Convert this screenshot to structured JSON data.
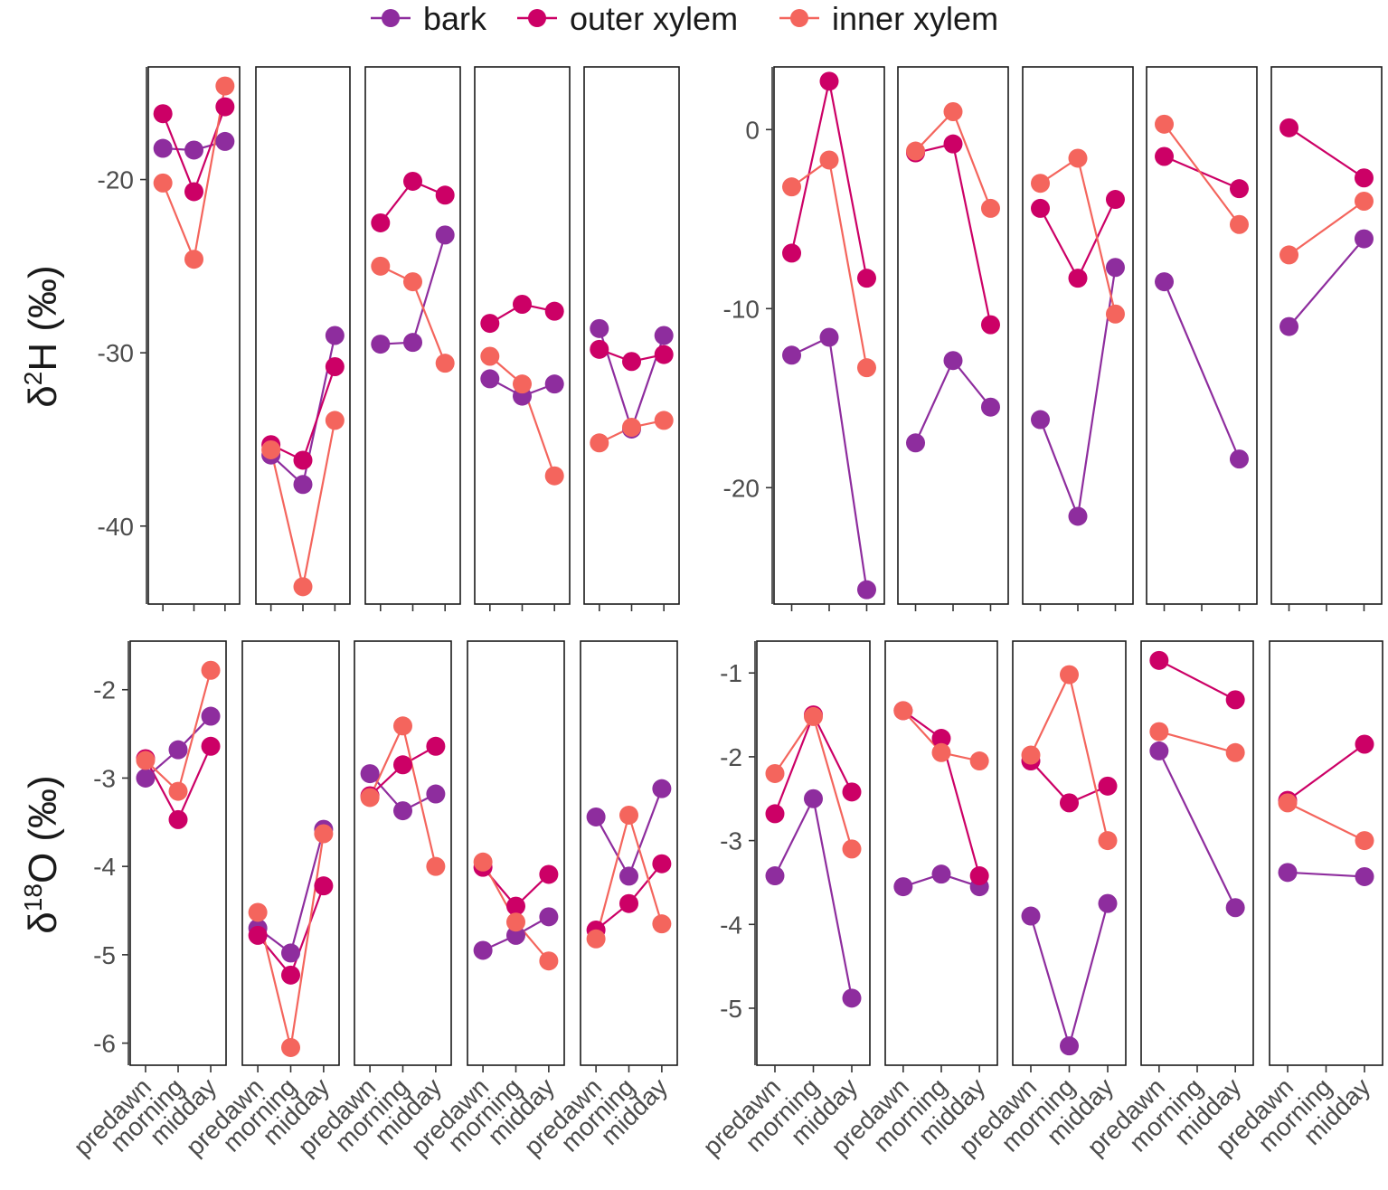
{
  "colors": {
    "bark": "#8e2d9e",
    "outer xylem": "#cc0066",
    "inner xylem": "#f4655d"
  },
  "chart_data": {
    "type": "line",
    "legend": {
      "position": "top",
      "entries": [
        {
          "name": "bark",
          "color_key": "bark"
        },
        {
          "name": "outer xylem",
          "color_key": "outer xylem"
        },
        {
          "name": "inner xylem",
          "color_key": "inner xylem"
        }
      ]
    },
    "categories": [
      "predawn",
      "morning",
      "midday"
    ],
    "rows": [
      {
        "ylabel_symbol": "δ",
        "ylabel_sup": "2",
        "ylabel_element": "H",
        "ylabel_unit": " (‰)",
        "groups": [
          {
            "ylim": [
              -44.5,
              -13.5
            ],
            "yticks": [
              {
                "v": -20,
                "label": "-20"
              },
              {
                "v": -30,
                "label": "-30"
              },
              {
                "v": -40,
                "label": "-40"
              }
            ],
            "panels": [
              {
                "bark": [
                  -18.2,
                  -18.3,
                  -17.8
                ],
                "outer xylem": [
                  -16.2,
                  -20.7,
                  -15.8
                ],
                "inner xylem": [
                  -20.2,
                  -24.6,
                  -14.6
                ]
              },
              {
                "bark": [
                  -35.9,
                  -37.6,
                  -29.0
                ],
                "outer xylem": [
                  -35.3,
                  -36.2,
                  -30.8
                ],
                "inner xylem": [
                  -35.6,
                  -43.5,
                  -33.9
                ]
              },
              {
                "bark": [
                  -29.5,
                  -29.4,
                  -23.2
                ],
                "outer xylem": [
                  -22.5,
                  -20.1,
                  -20.9
                ],
                "inner xylem": [
                  -25.0,
                  -25.9,
                  -30.6
                ]
              },
              {
                "bark": [
                  -31.5,
                  -32.5,
                  -31.8
                ],
                "outer xylem": [
                  -28.3,
                  -27.2,
                  -27.6
                ],
                "inner xylem": [
                  -30.2,
                  -31.8,
                  -37.1
                ]
              },
              {
                "bark": [
                  -28.6,
                  -34.4,
                  -29.0
                ],
                "outer xylem": [
                  -29.8,
                  -30.5,
                  -30.1
                ],
                "inner xylem": [
                  -35.2,
                  -34.3,
                  -33.9
                ]
              }
            ]
          },
          {
            "ylim": [
              -26.5,
              3.5
            ],
            "yticks": [
              {
                "v": 0,
                "label": "0"
              },
              {
                "v": -10,
                "label": "-10"
              },
              {
                "v": -20,
                "label": "-20"
              }
            ],
            "panels": [
              {
                "bark": [
                  -12.6,
                  -11.6,
                  -25.7
                ],
                "outer xylem": [
                  -6.9,
                  2.7,
                  -8.3
                ],
                "inner xylem": [
                  -3.2,
                  -1.7,
                  -13.3
                ]
              },
              {
                "bark": [
                  -17.5,
                  -12.9,
                  -15.5
                ],
                "outer xylem": [
                  -1.3,
                  -0.8,
                  -10.9
                ],
                "inner xylem": [
                  -1.2,
                  1.0,
                  -4.4
                ]
              },
              {
                "bark": [
                  -16.2,
                  -21.6,
                  -7.7
                ],
                "outer xylem": [
                  -4.4,
                  -8.3,
                  -3.9
                ],
                "inner xylem": [
                  -3.0,
                  -1.6,
                  -10.3
                ]
              },
              {
                "bark": [
                  -8.5,
                  null,
                  -18.4
                ],
                "outer xylem": [
                  -1.5,
                  null,
                  -3.3
                ],
                "inner xylem": [
                  0.3,
                  null,
                  -5.3
                ]
              },
              {
                "bark": [
                  -11.0,
                  null,
                  -6.1
                ],
                "outer xylem": [
                  0.1,
                  null,
                  -2.7
                ],
                "inner xylem": [
                  -7.0,
                  null,
                  -4.0
                ]
              }
            ]
          }
        ]
      },
      {
        "ylabel_symbol": "δ",
        "ylabel_sup": "18",
        "ylabel_element": "O",
        "ylabel_unit": " (‰)",
        "groups": [
          {
            "ylim": [
              -6.25,
              -1.45
            ],
            "yticks": [
              {
                "v": -2,
                "label": "-2"
              },
              {
                "v": -3,
                "label": "-3"
              },
              {
                "v": -4,
                "label": "-4"
              },
              {
                "v": -5,
                "label": "-5"
              },
              {
                "v": -6,
                "label": "-6"
              }
            ],
            "panels": [
              {
                "bark": [
                  -3.0,
                  -2.68,
                  -2.3
                ],
                "outer xylem": [
                  -2.78,
                  -3.47,
                  -2.64
                ],
                "inner xylem": [
                  -2.8,
                  -3.15,
                  -1.78
                ]
              },
              {
                "bark": [
                  -4.7,
                  -4.98,
                  -3.58
                ],
                "outer xylem": [
                  -4.78,
                  -5.23,
                  -4.22
                ],
                "inner xylem": [
                  -4.52,
                  -6.05,
                  -3.63
                ]
              },
              {
                "bark": [
                  -2.95,
                  -3.37,
                  -3.18
                ],
                "outer xylem": [
                  -3.2,
                  -2.85,
                  -2.64
                ],
                "inner xylem": [
                  -3.22,
                  -2.41,
                  -4.0
                ]
              },
              {
                "bark": [
                  -4.95,
                  -4.78,
                  -4.57
                ],
                "outer xylem": [
                  -4.01,
                  -4.45,
                  -4.09
                ],
                "inner xylem": [
                  -3.95,
                  -4.63,
                  -5.07
                ]
              },
              {
                "bark": [
                  -3.44,
                  -4.11,
                  -3.12
                ],
                "outer xylem": [
                  -4.72,
                  -4.42,
                  -3.97
                ],
                "inner xylem": [
                  -4.82,
                  -3.42,
                  -4.65
                ]
              }
            ]
          },
          {
            "ylim": [
              -5.68,
              -0.62
            ],
            "yticks": [
              {
                "v": -1,
                "label": "-1"
              },
              {
                "v": -2,
                "label": "-2"
              },
              {
                "v": -3,
                "label": "-3"
              },
              {
                "v": -4,
                "label": "-4"
              },
              {
                "v": -5,
                "label": "-5"
              }
            ],
            "panels": [
              {
                "bark": [
                  -3.42,
                  -2.5,
                  -4.88
                ],
                "outer xylem": [
                  -2.68,
                  -1.5,
                  -2.42
                ],
                "inner xylem": [
                  -2.2,
                  -1.52,
                  -3.1
                ]
              },
              {
                "bark": [
                  -3.55,
                  -3.4,
                  -3.55
                ],
                "outer xylem": [
                  -1.45,
                  -1.78,
                  -3.42
                ],
                "inner xylem": [
                  -1.45,
                  -1.95,
                  -2.05
                ]
              },
              {
                "bark": [
                  -3.9,
                  -5.45,
                  -3.75
                ],
                "outer xylem": [
                  -2.05,
                  -2.55,
                  -2.35
                ],
                "inner xylem": [
                  -1.98,
                  -1.02,
                  -3.0
                ]
              },
              {
                "bark": [
                  -1.93,
                  null,
                  -3.8
                ],
                "outer xylem": [
                  -0.85,
                  null,
                  -1.32
                ],
                "inner xylem": [
                  -1.7,
                  null,
                  -1.95
                ]
              },
              {
                "bark": [
                  -3.38,
                  null,
                  -3.43
                ],
                "outer xylem": [
                  -2.52,
                  null,
                  -1.85
                ],
                "inner xylem": [
                  -2.55,
                  null,
                  -3.0
                ]
              }
            ]
          }
        ]
      }
    ]
  }
}
